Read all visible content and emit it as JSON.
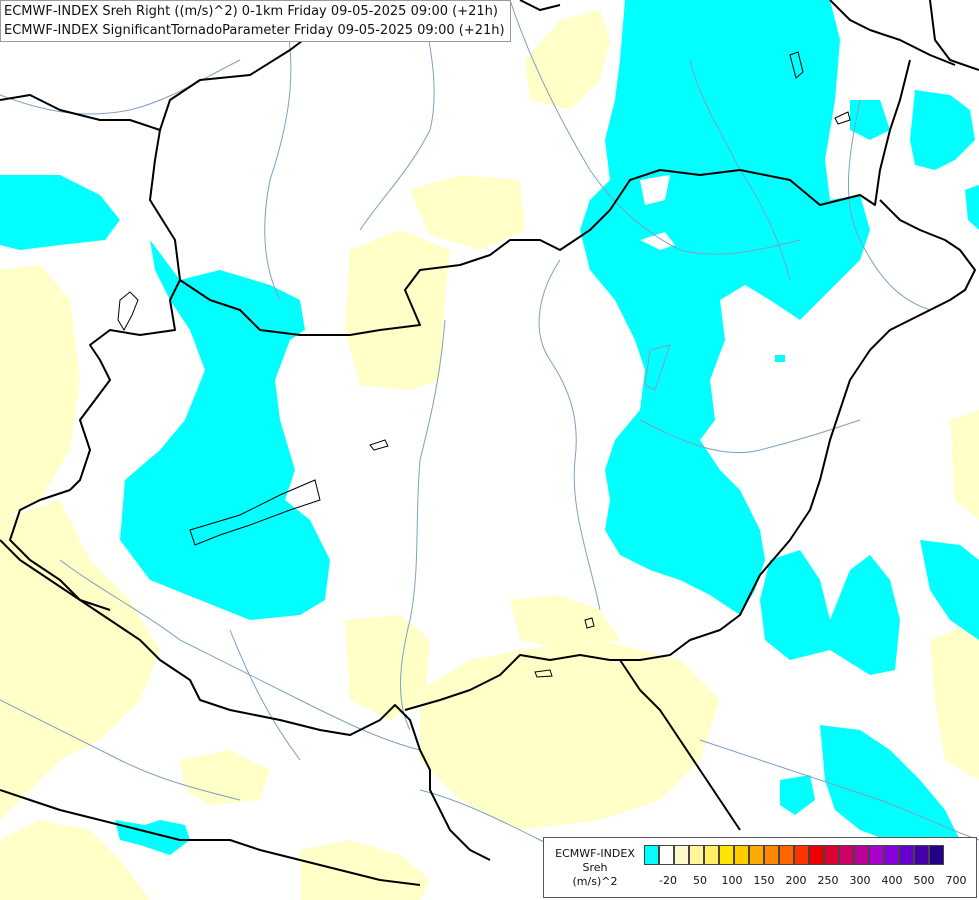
{
  "header": {
    "line1": "ECMWF-INDEX Sreh Right ((m/s)^2) 0-1km Friday 09-05-2025 09:00 (+21h)",
    "line2": "ECMWF-INDEX SignificantTornadoParameter Friday 09-05-2025 09:00 (+21h)"
  },
  "legend": {
    "title_line1": "ECMWF-INDEX",
    "title_line2": "Sreh",
    "title_line3": "(m/s)^2",
    "colors": [
      "#00ffff",
      "#ffffff",
      "#fffacd",
      "#fff799",
      "#fff066",
      "#ffe600",
      "#ffcc00",
      "#ffaa00",
      "#ff8800",
      "#ff6600",
      "#ff3300",
      "#ee0000",
      "#dd0033",
      "#cc0066",
      "#bb0099",
      "#aa00cc",
      "#8800dd",
      "#6600cc",
      "#4400aa",
      "#220088"
    ],
    "ticks": [
      "-20",
      "50",
      "100",
      "150",
      "200",
      "250",
      "300",
      "400",
      "500",
      "700"
    ]
  },
  "map": {
    "colors": {
      "cyan": "#00ffff",
      "pale_yellow": "#ffffc8",
      "border": "#000000",
      "river": "#7f9fc0"
    }
  }
}
